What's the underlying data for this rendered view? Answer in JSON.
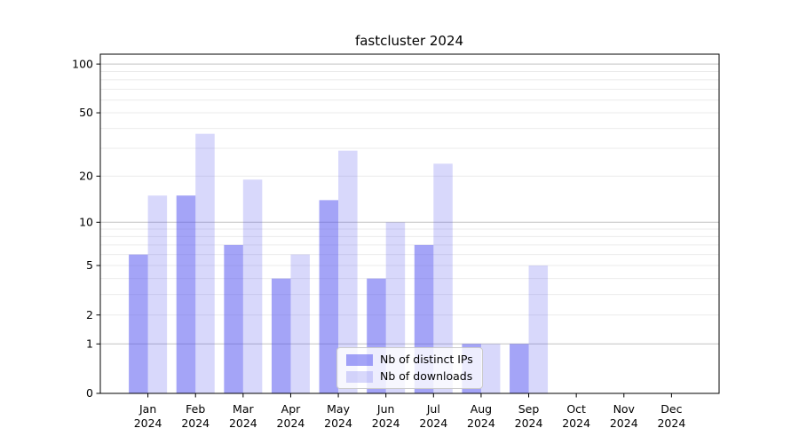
{
  "chart_data": {
    "type": "bar",
    "title": "fastcluster 2024",
    "categories": [
      "Jan 2024",
      "Feb 2024",
      "Mar 2024",
      "Apr 2024",
      "May 2024",
      "Jun 2024",
      "Jul 2024",
      "Aug 2024",
      "Sep 2024",
      "Oct 2024",
      "Nov 2024",
      "Dec 2024"
    ],
    "series": [
      {
        "name": "Nb of distinct IPs",
        "color": "#a4a4f7",
        "fill": "rgba(90,90,240,0.55)",
        "values": [
          6,
          15,
          7,
          4,
          14,
          4,
          7,
          1,
          1,
          0,
          0,
          0
        ]
      },
      {
        "name": "Nb of downloads",
        "color": "#d7d7fb",
        "fill": "rgba(90,90,240,0.24)",
        "values": [
          15,
          37,
          19,
          6,
          29,
          10,
          24,
          1,
          5,
          0,
          0,
          0
        ]
      }
    ],
    "yscale": "log1p",
    "ylim": [
      0,
      115
    ],
    "y_ticks": [
      0,
      1,
      2,
      5,
      10,
      20,
      50,
      100
    ],
    "y_major_gridlines": [
      1,
      10,
      100
    ],
    "y_minor_gridlines": [
      2,
      3,
      4,
      5,
      6,
      7,
      8,
      9,
      20,
      30,
      40,
      50,
      60,
      70,
      80,
      90
    ],
    "grid": true,
    "legend_position": "lower center",
    "xlabel": "",
    "ylabel": ""
  },
  "style": {
    "major_grid_color": "#c2c2c2",
    "minor_grid_color": "#ebebeb",
    "spine_color": "#000000",
    "tick_color": "#000000",
    "background": "#ffffff"
  }
}
